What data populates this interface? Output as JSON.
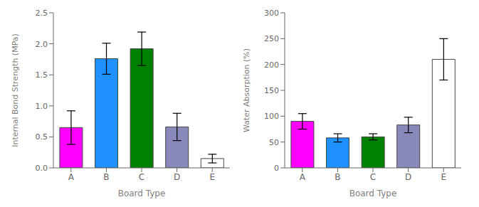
{
  "chart_data": [
    {
      "type": "bar",
      "categories": [
        "A",
        "B",
        "C",
        "D",
        "E"
      ],
      "values": [
        0.65,
        1.76,
        1.92,
        0.66,
        0.15
      ],
      "errors": [
        0.27,
        0.25,
        0.27,
        0.22,
        0.07
      ],
      "colors": [
        "#FF00FF",
        "#1E90FF",
        "#008000",
        "#8888BB",
        "white"
      ],
      "xlabel": "Board Type",
      "ylabel": "Internal Bond Strength (MPa)",
      "ylim": [
        0,
        2.5
      ],
      "yticks": [
        {
          "value": 0,
          "label": "0.0"
        },
        0.5,
        {
          "value": 1,
          "label": "1.0"
        },
        1.5,
        {
          "value": 2,
          "label": "2.0"
        },
        2.5
      ]
    },
    {
      "type": "bar",
      "categories": [
        "A",
        "B",
        "C",
        "D",
        "E"
      ],
      "values": [
        90,
        58,
        60,
        83,
        210
      ],
      "errors": [
        15,
        8,
        6,
        15,
        40
      ],
      "colors": [
        "#FF00FF",
        "#1E90FF",
        "#008000",
        "#8888BB",
        "white"
      ],
      "xlabel": "Board Type",
      "ylabel": "Water Absorption (%)",
      "ylim": [
        0,
        300
      ],
      "yticks": [
        0,
        50,
        100,
        150,
        200,
        250,
        300
      ]
    }
  ]
}
